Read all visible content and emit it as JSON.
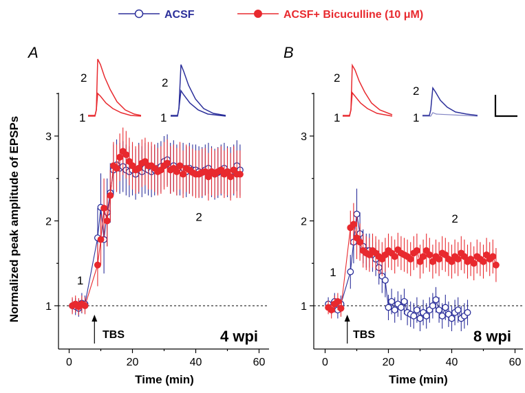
{
  "legend": {
    "acsf": "ACSF",
    "bic": "ACSF+ Bicuculline (10 μM)"
  },
  "colors": {
    "acsf": "#2b2f9a",
    "bic": "#e8292e"
  },
  "y_axis_label": "Normalized peak amplitude of EPSPs",
  "chart_data": [
    {
      "type": "scatter",
      "panel": "A",
      "badge": "4 wpi",
      "xlabel": "Time (min)",
      "xlim": [
        -5,
        60
      ],
      "ylim": [
        0.55,
        3.5
      ],
      "xticks": [
        0,
        20,
        40,
        60
      ],
      "yticks": [
        1,
        2,
        3
      ],
      "tbs_label": "TBS",
      "tbs_time": 8,
      "baseline": 1,
      "point_labels": [
        {
          "text": "1",
          "x": 3.5,
          "y": 1.25
        },
        {
          "text": "2",
          "x": 41,
          "y": 2.0
        }
      ],
      "series": [
        {
          "name": "ACSF",
          "x": [
            1,
            2,
            3,
            4,
            5,
            9,
            10,
            11,
            12,
            13,
            14,
            15,
            16,
            17,
            18,
            19,
            20,
            21,
            22,
            23,
            24,
            25,
            26,
            27,
            28,
            29,
            30,
            31,
            32,
            33,
            34,
            35,
            36,
            37,
            38,
            39,
            40,
            41,
            42,
            43,
            44,
            45,
            46,
            47,
            48,
            49,
            50,
            51,
            52,
            53,
            54
          ],
          "y": [
            1.0,
            0.99,
            0.97,
            1.03,
            1.02,
            1.8,
            2.16,
            1.78,
            2.1,
            2.33,
            2.6,
            2.66,
            2.62,
            2.64,
            2.6,
            2.58,
            2.6,
            2.55,
            2.62,
            2.58,
            2.62,
            2.6,
            2.58,
            2.6,
            2.62,
            2.64,
            2.7,
            2.72,
            2.62,
            2.65,
            2.6,
            2.6,
            2.62,
            2.58,
            2.62,
            2.6,
            2.6,
            2.58,
            2.57,
            2.6,
            2.62,
            2.58,
            2.55,
            2.57,
            2.6,
            2.62,
            2.58,
            2.57,
            2.6,
            2.65,
            2.6
          ],
          "err": [
            0.08,
            0.1,
            0.1,
            0.12,
            0.1,
            0.35,
            0.4,
            0.4,
            0.4,
            0.35,
            0.3,
            0.3,
            0.3,
            0.3,
            0.3,
            0.3,
            0.3,
            0.3,
            0.3,
            0.3,
            0.3,
            0.3,
            0.3,
            0.3,
            0.3,
            0.3,
            0.3,
            0.3,
            0.3,
            0.3,
            0.3,
            0.3,
            0.3,
            0.3,
            0.3,
            0.3,
            0.3,
            0.3,
            0.3,
            0.3,
            0.3,
            0.3,
            0.3,
            0.3,
            0.3,
            0.3,
            0.3,
            0.3,
            0.3,
            0.3,
            0.3
          ]
        },
        {
          "name": "ACSF+ Bicuculline (10 μM)",
          "x": [
            1,
            2,
            3,
            4,
            5,
            9,
            10,
            11,
            12,
            13,
            14,
            15,
            16,
            17,
            18,
            19,
            20,
            21,
            22,
            23,
            24,
            25,
            26,
            27,
            28,
            29,
            30,
            31,
            32,
            33,
            34,
            35,
            36,
            37,
            38,
            39,
            40,
            41,
            42,
            43,
            44,
            45,
            46,
            47,
            48,
            49,
            50,
            51,
            52,
            53,
            54
          ],
          "y": [
            1.0,
            1.02,
            0.99,
            1.02,
            1.0,
            1.48,
            1.78,
            2.15,
            2.0,
            2.3,
            2.65,
            2.62,
            2.75,
            2.82,
            2.78,
            2.7,
            2.65,
            2.6,
            2.62,
            2.68,
            2.7,
            2.65,
            2.65,
            2.62,
            2.58,
            2.6,
            2.65,
            2.68,
            2.6,
            2.62,
            2.58,
            2.65,
            2.55,
            2.62,
            2.6,
            2.57,
            2.55,
            2.55,
            2.57,
            2.58,
            2.52,
            2.58,
            2.55,
            2.58,
            2.6,
            2.55,
            2.58,
            2.52,
            2.6,
            2.55,
            2.55
          ],
          "err": [
            0.1,
            0.1,
            0.1,
            0.1,
            0.1,
            0.25,
            0.3,
            0.35,
            0.3,
            0.3,
            0.28,
            0.28,
            0.28,
            0.28,
            0.28,
            0.28,
            0.28,
            0.28,
            0.28,
            0.28,
            0.28,
            0.28,
            0.28,
            0.28,
            0.28,
            0.28,
            0.28,
            0.28,
            0.28,
            0.28,
            0.28,
            0.28,
            0.28,
            0.28,
            0.28,
            0.28,
            0.28,
            0.28,
            0.28,
            0.28,
            0.28,
            0.28,
            0.28,
            0.28,
            0.28,
            0.28,
            0.28,
            0.28,
            0.28,
            0.28,
            0.28
          ]
        }
      ]
    },
    {
      "type": "scatter",
      "panel": "B",
      "badge": "8 wpi",
      "xlabel": "Time (min)",
      "xlim": [
        -5,
        60
      ],
      "ylim": [
        0.55,
        3.5
      ],
      "xticks": [
        0,
        20,
        40,
        60
      ],
      "yticks": [
        1,
        2,
        3
      ],
      "tbs_label": "TBS",
      "tbs_time": 7,
      "baseline": 1,
      "point_labels": [
        {
          "text": "1",
          "x": 2.5,
          "y": 1.35
        },
        {
          "text": "2",
          "x": 41,
          "y": 1.98
        }
      ],
      "series": [
        {
          "name": "ACSF",
          "x": [
            1,
            2,
            3,
            4,
            5,
            8,
            9,
            10,
            11,
            12,
            13,
            14,
            15,
            16,
            17,
            18,
            19,
            20,
            21,
            22,
            23,
            24,
            25,
            26,
            27,
            28,
            29,
            30,
            31,
            32,
            33,
            34,
            35,
            36,
            37,
            38,
            39,
            40,
            41,
            42,
            43,
            44,
            45
          ],
          "y": [
            1.02,
            0.98,
            1.05,
            0.95,
            1.02,
            1.4,
            1.75,
            2.08,
            1.85,
            1.7,
            1.65,
            1.65,
            1.6,
            1.55,
            1.45,
            1.35,
            1.3,
            0.98,
            1.05,
            0.95,
            1.02,
            0.98,
            1.05,
            0.92,
            0.9,
            0.88,
            0.95,
            0.85,
            0.92,
            0.88,
            0.95,
            1.0,
            1.07,
            0.95,
            0.88,
            0.98,
            0.9,
            0.85,
            0.92,
            0.95,
            0.85,
            0.88,
            0.92
          ],
          "err": [
            0.08,
            0.08,
            0.1,
            0.1,
            0.1,
            0.2,
            0.25,
            0.3,
            0.25,
            0.2,
            0.2,
            0.2,
            0.2,
            0.2,
            0.2,
            0.2,
            0.2,
            0.15,
            0.15,
            0.15,
            0.15,
            0.15,
            0.15,
            0.15,
            0.15,
            0.15,
            0.15,
            0.15,
            0.15,
            0.15,
            0.15,
            0.15,
            0.15,
            0.15,
            0.15,
            0.15,
            0.15,
            0.15,
            0.15,
            0.15,
            0.15,
            0.15,
            0.15
          ]
        },
        {
          "name": "ACSF+ Bicuculline (10 μM)",
          "x": [
            1,
            2,
            3,
            4,
            5,
            8,
            9,
            10,
            11,
            12,
            13,
            14,
            15,
            16,
            17,
            18,
            19,
            20,
            21,
            22,
            23,
            24,
            25,
            26,
            27,
            28,
            29,
            30,
            31,
            32,
            33,
            34,
            35,
            36,
            37,
            38,
            39,
            40,
            41,
            42,
            43,
            44,
            45,
            46,
            47,
            48,
            49,
            50,
            51,
            52,
            53,
            54
          ],
          "y": [
            0.98,
            0.95,
            1.02,
            1.05,
            0.97,
            1.92,
            1.96,
            1.8,
            1.75,
            1.65,
            1.62,
            1.6,
            1.65,
            1.62,
            1.58,
            1.55,
            1.6,
            1.65,
            1.62,
            1.58,
            1.66,
            1.62,
            1.6,
            1.58,
            1.55,
            1.62,
            1.65,
            1.52,
            1.58,
            1.65,
            1.6,
            1.52,
            1.58,
            1.55,
            1.62,
            1.6,
            1.55,
            1.52,
            1.58,
            1.55,
            1.62,
            1.58,
            1.52,
            1.55,
            1.5,
            1.58,
            1.55,
            1.52,
            1.6,
            1.55,
            1.58,
            1.48
          ],
          "err": [
            0.08,
            0.1,
            0.1,
            0.1,
            0.1,
            0.2,
            0.25,
            0.25,
            0.22,
            0.2,
            0.2,
            0.2,
            0.2,
            0.2,
            0.2,
            0.2,
            0.2,
            0.2,
            0.2,
            0.2,
            0.2,
            0.2,
            0.2,
            0.2,
            0.2,
            0.2,
            0.2,
            0.2,
            0.2,
            0.2,
            0.2,
            0.2,
            0.2,
            0.2,
            0.2,
            0.2,
            0.2,
            0.2,
            0.2,
            0.2,
            0.2,
            0.2,
            0.2,
            0.2,
            0.2,
            0.2,
            0.2,
            0.2,
            0.2,
            0.2,
            0.2,
            0.2
          ]
        }
      ]
    }
  ]
}
